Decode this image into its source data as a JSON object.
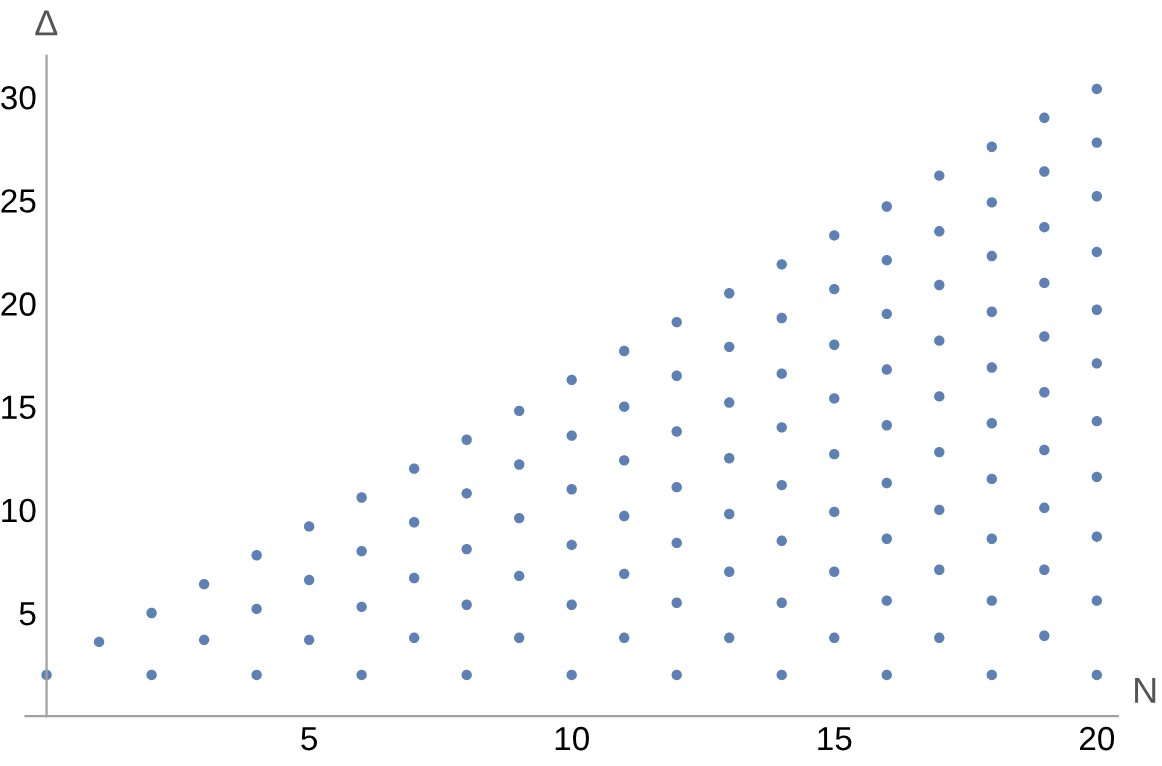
{
  "chart_data": {
    "type": "scatter",
    "xlabel": "N",
    "ylabel": "Δ",
    "xlim": [
      -0.4,
      20.4
    ],
    "ylim": [
      0,
      32
    ],
    "xticks": [
      5,
      10,
      15,
      20
    ],
    "yticks": [
      5,
      10,
      15,
      20,
      25,
      30
    ],
    "grid": false,
    "marker": "circle",
    "series": [
      {
        "color": "#5e81b5",
        "x": [
          0,
          1,
          2,
          2,
          3,
          3,
          4,
          4,
          4,
          5,
          5,
          5,
          6,
          6,
          6,
          6,
          7,
          7,
          7,
          7,
          8,
          8,
          8,
          8,
          8,
          9,
          9,
          9,
          9,
          9,
          10,
          10,
          10,
          10,
          10,
          10,
          11,
          11,
          11,
          11,
          11,
          11,
          12,
          12,
          12,
          12,
          12,
          12,
          12,
          13,
          13,
          13,
          13,
          13,
          13,
          13,
          14,
          14,
          14,
          14,
          14,
          14,
          14,
          14,
          15,
          15,
          15,
          15,
          15,
          15,
          15,
          15,
          16,
          16,
          16,
          16,
          16,
          16,
          16,
          16,
          16,
          17,
          17,
          17,
          17,
          17,
          17,
          17,
          17,
          17,
          18,
          18,
          18,
          18,
          18,
          18,
          18,
          18,
          18,
          18,
          19,
          19,
          19,
          19,
          19,
          19,
          19,
          19,
          19,
          19,
          20,
          20,
          20,
          20,
          20,
          20,
          20,
          20,
          20,
          20,
          20
        ],
        "values": [
          2.0,
          3.6,
          2.0,
          5.0,
          3.7,
          6.4,
          2.0,
          5.2,
          7.8,
          3.7,
          6.6,
          9.2,
          2.0,
          5.3,
          8.0,
          10.6,
          3.8,
          6.7,
          9.4,
          12.0,
          2.0,
          5.4,
          8.1,
          10.8,
          13.4,
          3.8,
          6.8,
          9.6,
          12.2,
          14.8,
          2.0,
          5.4,
          8.3,
          11.0,
          13.6,
          16.3,
          3.8,
          6.9,
          9.7,
          12.4,
          15.0,
          17.7,
          2.0,
          5.5,
          8.4,
          11.1,
          13.8,
          16.5,
          19.1,
          3.8,
          7.0,
          9.8,
          12.5,
          15.2,
          17.9,
          20.5,
          2.0,
          5.5,
          8.5,
          11.2,
          14.0,
          16.6,
          19.3,
          21.9,
          3.8,
          7.0,
          9.9,
          12.7,
          15.4,
          18.0,
          20.7,
          23.3,
          2.0,
          5.6,
          8.6,
          11.3,
          14.1,
          16.8,
          19.5,
          22.1,
          24.7,
          3.8,
          7.1,
          10.0,
          12.8,
          15.5,
          18.2,
          20.9,
          23.5,
          26.2,
          2.0,
          5.6,
          8.6,
          11.5,
          14.2,
          16.9,
          19.6,
          22.3,
          24.9,
          27.6,
          3.9,
          7.1,
          10.1,
          12.9,
          15.7,
          18.4,
          21.0,
          23.7,
          26.4,
          29.0,
          2.0,
          5.6,
          8.7,
          11.6,
          14.3,
          17.1,
          19.7,
          22.5,
          25.2,
          27.8,
          30.4
        ]
      }
    ]
  }
}
